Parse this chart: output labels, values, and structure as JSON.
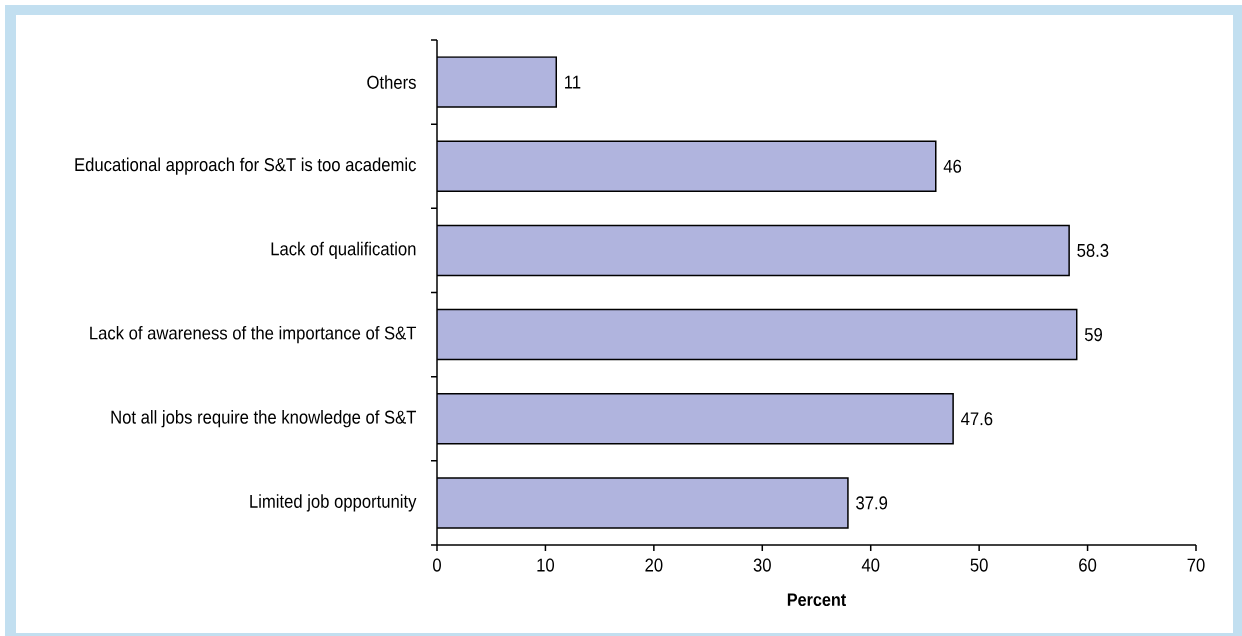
{
  "chart_data": {
    "type": "bar",
    "orientation": "horizontal",
    "categories": [
      "Others",
      "Educational approach for S&T is too academic",
      "Lack of qualification",
      "Lack of awareness of the importance of S&T",
      "Not all jobs require the knowledge of S&T",
      "Limited job opportunity"
    ],
    "values": [
      11,
      46,
      58.3,
      59,
      47.6,
      37.9
    ],
    "color": "#b0b4de",
    "xlabel": "Percent",
    "xlim": [
      0,
      70
    ],
    "xticks": [
      0,
      10,
      20,
      30,
      40,
      50,
      60,
      70
    ],
    "data_labels": true
  }
}
